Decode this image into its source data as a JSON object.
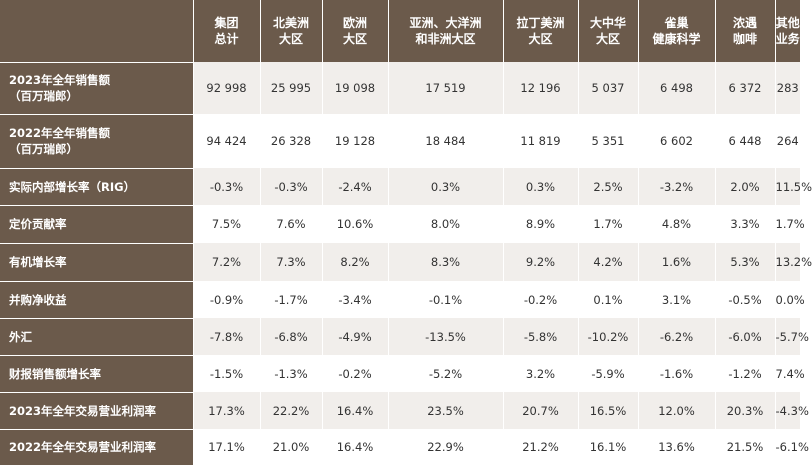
{
  "table": {
    "header": [
      "",
      "集团\n总计",
      "北美洲\n大区",
      "欧洲\n大区",
      "亚洲、大洋洲\n和非洲大区",
      "拉丁美洲\n大区",
      "大中华\n大区",
      "雀巢\n健康科学",
      "浓遇\n咖啡",
      "其他\n业务"
    ],
    "rows": [
      {
        "label": "2023年全年销售额\n（百万瑞郎）",
        "values": [
          "92 998",
          "25 995",
          "19 098",
          "17 519",
          "12 196",
          "5 037",
          "6 498",
          "6 372",
          "283"
        ]
      },
      {
        "label": "2022年全年销售额\n（百万瑞郎）",
        "values": [
          "94 424",
          "26 328",
          "19 128",
          "18 484",
          "11 819",
          "5 351",
          "6 602",
          "6 448",
          "264"
        ]
      },
      {
        "label": "实际内部增长率（RIG）",
        "values": [
          "-0.3%",
          "-0.3%",
          "-2.4%",
          "0.3%",
          "0.3%",
          "2.5%",
          "-3.2%",
          "2.0%",
          "11.5%"
        ]
      },
      {
        "label": "定价贡献率",
        "values": [
          "7.5%",
          "7.6%",
          "10.6%",
          "8.0%",
          "8.9%",
          "1.7%",
          "4.8%",
          "3.3%",
          "1.7%"
        ]
      },
      {
        "label": "有机增长率",
        "values": [
          "7.2%",
          "7.3%",
          "8.2%",
          "8.3%",
          "9.2%",
          "4.2%",
          "1.6%",
          "5.3%",
          "13.2%"
        ]
      },
      {
        "label": "并购净收益",
        "values": [
          "-0.9%",
          "-1.7%",
          "-3.4%",
          "-0.1%",
          "-0.2%",
          "0.1%",
          "3.1%",
          "-0.5%",
          "0.0%"
        ]
      },
      {
        "label": "外汇",
        "values": [
          "-7.8%",
          "-6.8%",
          "-4.9%",
          "-13.5%",
          "-5.8%",
          "-10.2%",
          "-6.2%",
          "-6.0%",
          "-5.7%"
        ]
      },
      {
        "label": "财报销售额增长率",
        "values": [
          "-1.5%",
          "-1.3%",
          "-0.2%",
          "-5.2%",
          "3.2%",
          "-5.9%",
          "-1.6%",
          "-1.2%",
          "7.4%"
        ]
      },
      {
        "label": "2023年全年交易营业利润率",
        "values": [
          "17.3%",
          "22.2%",
          "16.4%",
          "23.5%",
          "20.7%",
          "16.5%",
          "12.0%",
          "20.3%",
          "-4.3%"
        ]
      },
      {
        "label": "2022年全年交易营业利润率",
        "values": [
          "17.1%",
          "21.0%",
          "16.4%",
          "22.9%",
          "21.2%",
          "16.1%",
          "13.6%",
          "21.5%",
          "-6.1%"
        ]
      }
    ]
  }
}
